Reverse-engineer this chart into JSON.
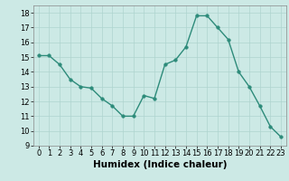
{
  "x": [
    0,
    1,
    2,
    3,
    4,
    5,
    6,
    7,
    8,
    9,
    10,
    11,
    12,
    13,
    14,
    15,
    16,
    17,
    18,
    19,
    20,
    21,
    22,
    23
  ],
  "y": [
    15.1,
    15.1,
    14.5,
    13.5,
    13.0,
    12.9,
    12.2,
    11.7,
    11.0,
    11.0,
    12.4,
    12.2,
    14.5,
    14.8,
    15.7,
    17.8,
    17.8,
    17.0,
    16.2,
    14.0,
    13.0,
    11.7,
    10.3,
    9.6
  ],
  "line_color": "#2d8b7a",
  "marker_color": "#2d8b7a",
  "bg_color": "#cce9e5",
  "grid_color": "#aed4cf",
  "xlabel": "Humidex (Indice chaleur)",
  "ylim": [
    9,
    18.5
  ],
  "xlim": [
    -0.5,
    23.5
  ],
  "yticks": [
    9,
    10,
    11,
    12,
    13,
    14,
    15,
    16,
    17,
    18
  ],
  "xticks": [
    0,
    1,
    2,
    3,
    4,
    5,
    6,
    7,
    8,
    9,
    10,
    11,
    12,
    13,
    14,
    15,
    16,
    17,
    18,
    19,
    20,
    21,
    22,
    23
  ],
  "tick_label_fontsize": 6.0,
  "xlabel_fontsize": 7.5,
  "line_width": 1.0,
  "marker_size": 2.5
}
